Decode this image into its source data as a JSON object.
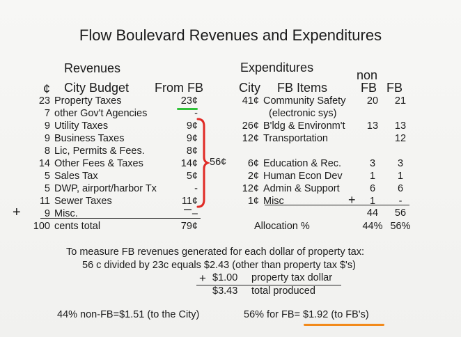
{
  "title": "Flow Boulevard Revenues and Expenditures",
  "revenues": {
    "heading": "Revenues",
    "col_cents": "¢",
    "col_city_budget": "City Budget",
    "col_from_fb": "From FB",
    "rows": [
      {
        "cents": "23",
        "item": "Property Taxes",
        "fb": "23¢"
      },
      {
        "cents": "7",
        "item": "other Gov't Agencies",
        "fb": "-"
      },
      {
        "cents": "9",
        "item": "Utility Taxes",
        "fb": "9¢"
      },
      {
        "cents": "9",
        "item": "Business Taxes",
        "fb": "9¢"
      },
      {
        "cents": "8",
        "item": "Lic, Permits & Fees.",
        "fb": "8¢"
      },
      {
        "cents": "14",
        "item": "Other Fees & Taxes",
        "fb": "14¢"
      },
      {
        "cents": "5",
        "item": "Sales Tax",
        "fb": "5¢"
      },
      {
        "cents": "5",
        "item": "DWP, airport/harbor Tx",
        "fb": "-"
      },
      {
        "cents": "11",
        "item": "Sewer Taxes",
        "fb": "11¢"
      },
      {
        "cents": "9",
        "item": "Misc.",
        "fb": "–"
      }
    ],
    "plus": "+",
    "bracket_total": "56¢",
    "total_cents": "100",
    "total_label": "cents total",
    "total_fb": "79¢"
  },
  "expenditures": {
    "heading": "Expenditures",
    "col_city": "City",
    "col_fb_items": "FB Items",
    "col_nonfb_top": "non",
    "col_nonfb": "FB",
    "col_fb": "FB",
    "rows": [
      {
        "city": "41¢",
        "item": "Community Safety",
        "nonfb": "20",
        "fb": "21"
      },
      {
        "city": "",
        "item": "(electronic sys)",
        "nonfb": "",
        "fb": ""
      },
      {
        "city": "26¢",
        "item": "B'ldg & Environm't",
        "nonfb": "13",
        "fb": "13"
      },
      {
        "city": "12¢",
        "item": "Transportation",
        "nonfb": "",
        "fb": "12"
      },
      {
        "city": "6¢",
        "item": "Education & Rec.",
        "nonfb": "3",
        "fb": "3"
      },
      {
        "city": "2¢",
        "item": "Human Econ Dev",
        "nonfb": "1",
        "fb": "1"
      },
      {
        "city": "12¢",
        "item": "Admin & Support",
        "nonfb": "6",
        "fb": "6"
      },
      {
        "city": "1¢",
        "item": "Misc",
        "nonfb": "1",
        "fb": "-"
      }
    ],
    "plus": "+",
    "sum_nonfb": "44",
    "sum_fb": "56",
    "alloc_label": "Allocation %",
    "alloc_nonfb": "44%",
    "alloc_fb": "56%"
  },
  "calc": {
    "line1": "To measure FB revenues generated for each dollar of property tax:",
    "line2": "56 c divided by 23c equals $2.43  (other than property tax $'s)",
    "plus": "+",
    "add_value": "$1.00",
    "add_label": "property tax  dollar",
    "total_value": "$3.43",
    "total_label": "total produced"
  },
  "summary": {
    "left": "44% non-FB=$1.51 (to the City)",
    "right": "56% for FB= $1.92 (to FB's)"
  },
  "colors": {
    "green_underline": "#31c13a",
    "red_bracket": "#e02a25",
    "orange_underline": "#f28a1b"
  }
}
